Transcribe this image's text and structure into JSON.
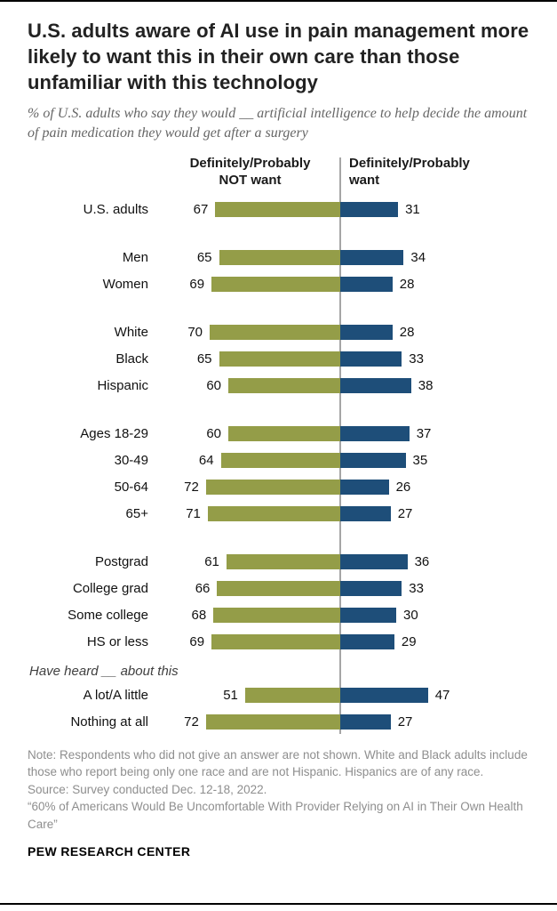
{
  "header": {
    "title": "U.S. adults aware of AI use in pain management more likely to want this in their own care than those unfamiliar with this technology",
    "subtitle": "% of U.S. adults who say they would __ artificial intelligence to help decide the amount of pain medication they would get after a surgery"
  },
  "chart_data": {
    "type": "bar",
    "orientation": "diverging-horizontal",
    "title": "U.S. adults aware of AI use in pain management more likely to want this in their own care than those unfamiliar with this technology",
    "legend_left": "Definitely/Probably\nNOT want",
    "legend_right": "Definitely/Probably\nwant",
    "series": [
      {
        "name": "Definitely/Probably NOT want",
        "color": "#949d48"
      },
      {
        "name": "Definitely/Probably want",
        "color": "#1e4e79"
      }
    ],
    "colors": {
      "not_want": "#949d48",
      "want": "#1e4e79",
      "axis_line": "#a5a5a5"
    },
    "value_range": [
      0,
      100
    ],
    "groups": [
      {
        "rows": [
          {
            "label": "U.S. adults",
            "not_want": 67,
            "want": 31
          }
        ]
      },
      {
        "rows": [
          {
            "label": "Men",
            "not_want": 65,
            "want": 34
          },
          {
            "label": "Women",
            "not_want": 69,
            "want": 28
          }
        ]
      },
      {
        "rows": [
          {
            "label": "White",
            "not_want": 70,
            "want": 28
          },
          {
            "label": "Black",
            "not_want": 65,
            "want": 33
          },
          {
            "label": "Hispanic",
            "not_want": 60,
            "want": 38
          }
        ]
      },
      {
        "rows": [
          {
            "label": "Ages 18-29",
            "not_want": 60,
            "want": 37
          },
          {
            "label": "30-49",
            "not_want": 64,
            "want": 35
          },
          {
            "label": "50-64",
            "not_want": 72,
            "want": 26
          },
          {
            "label": "65+",
            "not_want": 71,
            "want": 27
          }
        ]
      },
      {
        "rows": [
          {
            "label": "Postgrad",
            "not_want": 61,
            "want": 36
          },
          {
            "label": "College grad",
            "not_want": 66,
            "want": 33
          },
          {
            "label": "Some college",
            "not_want": 68,
            "want": 30
          },
          {
            "label": "HS or less",
            "not_want": 69,
            "want": 29
          }
        ]
      },
      {
        "section_label": "Have heard __ about this",
        "rows": [
          {
            "label": "A lot/A little",
            "not_want": 51,
            "want": 47
          },
          {
            "label": "Nothing at all",
            "not_want": 72,
            "want": 27
          }
        ]
      }
    ]
  },
  "footer": {
    "note": "Note: Respondents who did not give an answer are not shown. White and Black adults include those who report being only one race and are not Hispanic. Hispanics are of any race.",
    "source": "Source: Survey conducted Dec. 12-18, 2022.",
    "report": "“60% of Americans Would Be Uncomfortable With Provider Relying on AI in Their Own Health Care”",
    "brand": "PEW RESEARCH CENTER"
  }
}
